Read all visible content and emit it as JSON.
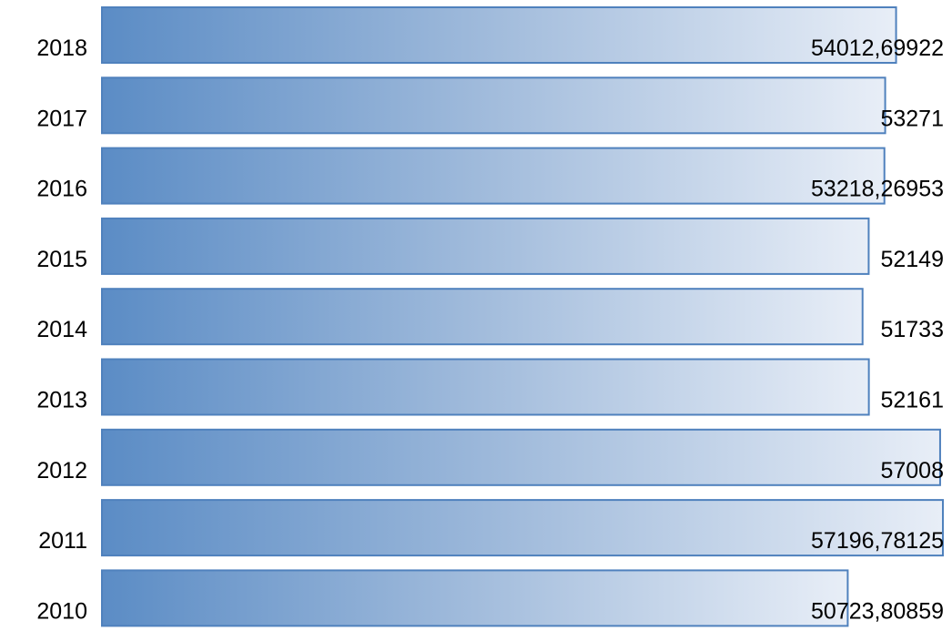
{
  "chart_data": {
    "type": "bar",
    "orientation": "horizontal",
    "categories": [
      "2018",
      "2017",
      "2016",
      "2015",
      "2014",
      "2013",
      "2012",
      "2011",
      "2010"
    ],
    "values": [
      54012.69922,
      53271,
      53218.26953,
      52149,
      51733,
      52161,
      57008,
      57196.78125,
      50723.80859
    ],
    "value_labels": [
      "54012,69922",
      "53271",
      "53218,26953",
      "52149",
      "51733",
      "52161",
      "57008",
      "57196,78125",
      "50723,80859"
    ],
    "color": "#4f81bd"
  }
}
